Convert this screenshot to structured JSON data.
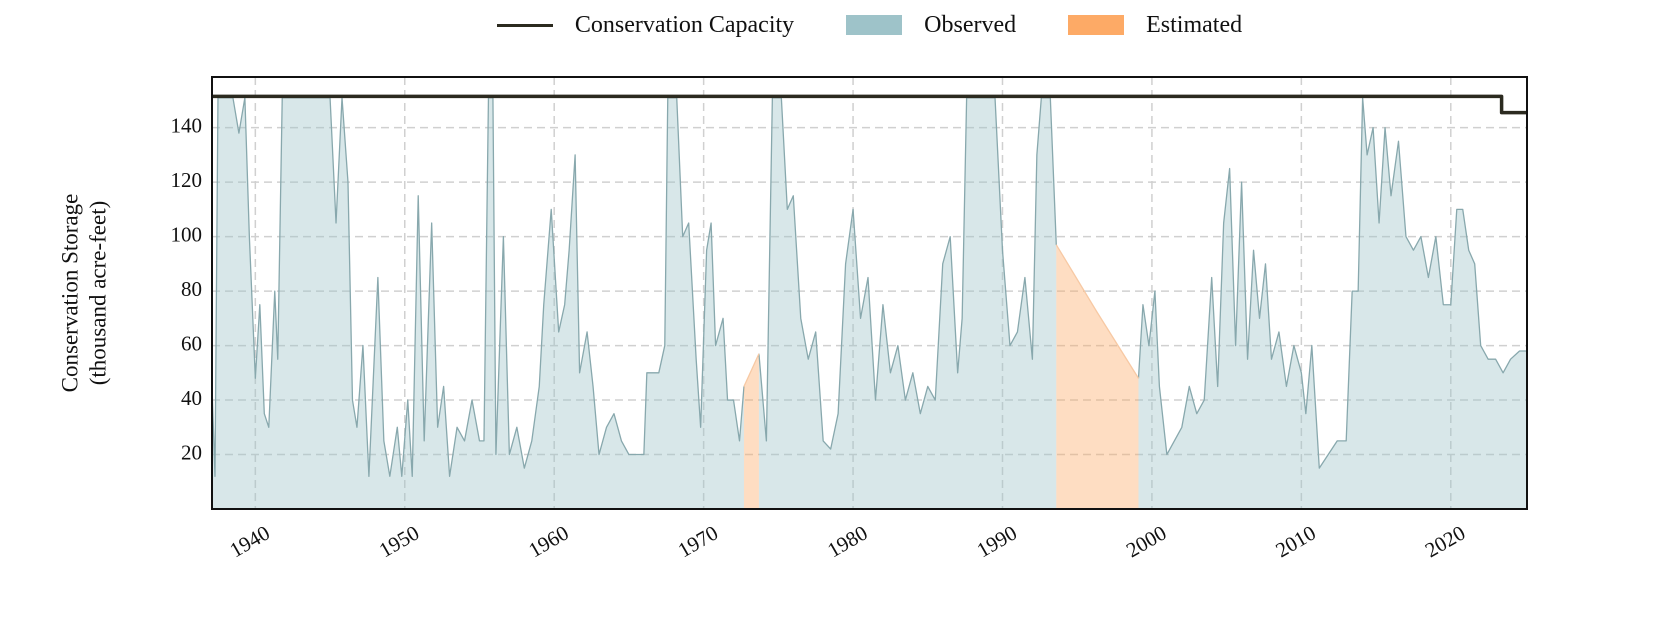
{
  "chart_data": {
    "type": "line",
    "ylabel": [
      "Conservation Storage",
      "(thousand acre-feet)"
    ],
    "xlim": [
      1937.1,
      2025.1
    ],
    "ylim": [
      0,
      158.6
    ],
    "xticks": [
      1940,
      1950,
      1960,
      1970,
      1980,
      1990,
      2000,
      2010,
      2020
    ],
    "yticks": [
      20,
      40,
      60,
      80,
      100,
      120,
      140
    ],
    "grid": true,
    "legend": "top",
    "x": [
      1937.1,
      1937.3,
      1937.5,
      1938.5,
      1938.9,
      1939.3,
      1939.6,
      1940.0,
      1940.3,
      1940.6,
      1940.9,
      1941.3,
      1941.5,
      1941.8,
      1945.0,
      1945.4,
      1945.8,
      1946.2,
      1946.5,
      1946.8,
      1947.2,
      1947.6,
      1948.2,
      1948.6,
      1949.0,
      1949.5,
      1949.8,
      1950.2,
      1950.5,
      1950.9,
      1951.3,
      1951.8,
      1952.2,
      1952.6,
      1953.0,
      1953.5,
      1954.0,
      1954.5,
      1955.0,
      1955.3,
      1955.6,
      1955.9,
      1956.1,
      1956.6,
      1957.0,
      1957.5,
      1958.0,
      1958.5,
      1959.0,
      1959.3,
      1959.8,
      1960.3,
      1960.7,
      1961.0,
      1961.4,
      1961.7,
      1962.2,
      1962.6,
      1963.0,
      1963.5,
      1964.0,
      1964.5,
      1965.0,
      1965.5,
      1966.0,
      1966.2,
      1967.0,
      1967.4,
      1967.6,
      1968.2,
      1968.6,
      1969.0,
      1969.5,
      1969.8,
      1970.2,
      1970.5,
      1970.8,
      1971.3,
      1971.6,
      1972.0,
      1972.4,
      1972.7,
      1973.2,
      1973.7,
      1974.2,
      1974.6,
      1975.2,
      1975.6,
      1976.0,
      1976.5,
      1977.0,
      1977.5,
      1978.0,
      1978.5,
      1979.0,
      1979.5,
      1980.0,
      1980.5,
      1981.0,
      1981.5,
      1982.0,
      1982.5,
      1983.0,
      1983.5,
      1984.0,
      1984.5,
      1985.0,
      1985.5,
      1986.0,
      1986.5,
      1987.0,
      1987.3,
      1987.6,
      1989.5,
      1990.0,
      1990.5,
      1991.0,
      1991.5,
      1992.0,
      1992.3,
      1992.6,
      1993.2,
      1993.6,
      1996.3,
      1999.1,
      1999.4,
      1999.8,
      2000.2,
      2000.5,
      2001.0,
      2001.5,
      2002.0,
      2002.5,
      2003.0,
      2003.5,
      2004.0,
      2004.4,
      2004.8,
      2005.2,
      2005.6,
      2006.0,
      2006.4,
      2006.8,
      2007.2,
      2007.6,
      2008.0,
      2008.5,
      2009.0,
      2009.5,
      2010.0,
      2010.3,
      2010.7,
      2011.2,
      2011.8,
      2012.4,
      2013.0,
      2013.4,
      2013.8,
      2014.1,
      2014.4,
      2014.8,
      2015.2,
      2015.6,
      2016.0,
      2016.5,
      2017.0,
      2017.5,
      2018.0,
      2018.5,
      2019.0,
      2019.5,
      2020.0,
      2020.4,
      2020.8,
      2021.2,
      2021.6,
      2022.0,
      2022.5,
      2023.0,
      2023.5,
      2024.0,
      2024.6,
      2025.1
    ],
    "series": [
      {
        "name": "Conservation Capacity",
        "kind": "line",
        "color": "#2b2a1f",
        "x": [
          1937.1,
          2023.4,
          2023.4,
          2025.1
        ],
        "values": [
          151.5,
          151.5,
          145.5,
          145.5
        ]
      },
      {
        "name": "Observed",
        "kind": "area",
        "color": "#9ec3c9",
        "edgecolor": "#88a8ad",
        "values": [
          45,
          12,
          151,
          151,
          138,
          151,
          100,
          48,
          75,
          35,
          30,
          80,
          55,
          151,
          151,
          105,
          151,
          120,
          40,
          30,
          60,
          12,
          85,
          25,
          12,
          30,
          12,
          40,
          12,
          115,
          25,
          105,
          30,
          45,
          12,
          30,
          25,
          40,
          25,
          25,
          151,
          151,
          20,
          100,
          20,
          30,
          15,
          25,
          45,
          75,
          110,
          65,
          75,
          95,
          130,
          50,
          65,
          45,
          20,
          30,
          35,
          25,
          20,
          20,
          20,
          50,
          50,
          60,
          151,
          151,
          100,
          105,
          55,
          30,
          95,
          105,
          60,
          70,
          40,
          40,
          25,
          45,
          null,
          57,
          25,
          151,
          151,
          110,
          115,
          70,
          55,
          65,
          25,
          22,
          35,
          90,
          110,
          70,
          85,
          40,
          75,
          50,
          60,
          40,
          50,
          35,
          45,
          40,
          90,
          100,
          50,
          70,
          151,
          151,
          95,
          60,
          65,
          85,
          55,
          130,
          151,
          151,
          97,
          null,
          48,
          75,
          60,
          80,
          45,
          20,
          25,
          30,
          45,
          35,
          40,
          85,
          45,
          105,
          125,
          60,
          120,
          55,
          95,
          70,
          90,
          55,
          65,
          45,
          60,
          50,
          35,
          60,
          15,
          20,
          25,
          25,
          80,
          80,
          151,
          130,
          140,
          105,
          140,
          115,
          135,
          100,
          95,
          100,
          85,
          100,
          75,
          75,
          110,
          110,
          95,
          90,
          60,
          55,
          55,
          50,
          55,
          58,
          58
        ]
      },
      {
        "name": "Estimated",
        "kind": "area",
        "color": "#fdaa66",
        "edgecolor": "#f7c9a4",
        "values": [
          null,
          null,
          null,
          null,
          null,
          null,
          null,
          null,
          null,
          null,
          null,
          null,
          null,
          null,
          null,
          null,
          null,
          null,
          null,
          null,
          null,
          null,
          null,
          null,
          null,
          null,
          null,
          null,
          null,
          null,
          null,
          null,
          null,
          null,
          null,
          null,
          null,
          null,
          null,
          null,
          null,
          null,
          null,
          null,
          null,
          null,
          null,
          null,
          null,
          null,
          null,
          null,
          null,
          null,
          null,
          null,
          null,
          null,
          null,
          null,
          null,
          null,
          null,
          null,
          null,
          null,
          null,
          null,
          null,
          null,
          null,
          null,
          null,
          null,
          null,
          null,
          null,
          null,
          null,
          null,
          null,
          45,
          51,
          57,
          null,
          null,
          null,
          null,
          null,
          null,
          null,
          null,
          null,
          null,
          null,
          null,
          null,
          null,
          null,
          null,
          null,
          null,
          null,
          null,
          null,
          null,
          null,
          null,
          null,
          null,
          null,
          null,
          null,
          null,
          null,
          null,
          null,
          null,
          null,
          null,
          null,
          null,
          97,
          72.5,
          48,
          null,
          null,
          null,
          null,
          null,
          null,
          null,
          null,
          null,
          null,
          null,
          null,
          null,
          null,
          null,
          null,
          null,
          null,
          null,
          null,
          null,
          null,
          null,
          null,
          null,
          null,
          null,
          null,
          null,
          null,
          null,
          null,
          null,
          null,
          null,
          null,
          null,
          null,
          null,
          null,
          null,
          null,
          null,
          null,
          null,
          null,
          null,
          null,
          null,
          null,
          null,
          null,
          null,
          null,
          null,
          null,
          null,
          null
        ]
      }
    ]
  }
}
